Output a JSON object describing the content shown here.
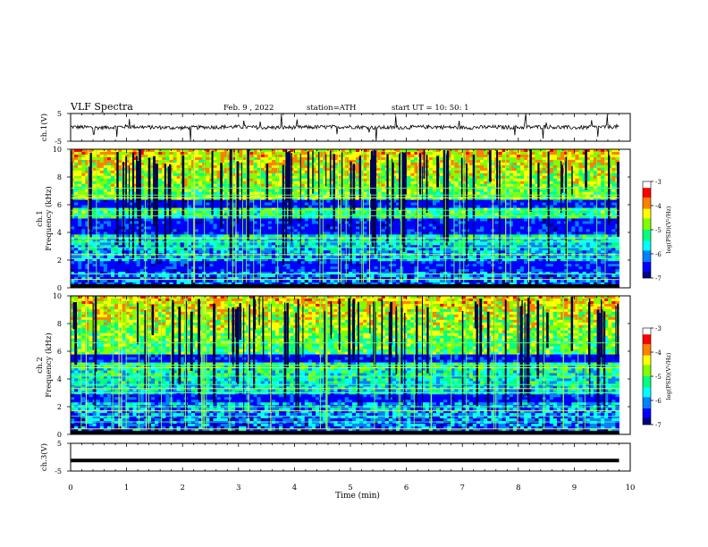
{
  "header": {
    "title": "VLF  Spectra",
    "date": "Feb. 9  , 2022",
    "station": "station=ATH",
    "start": "start  UT  =    10: 50: 1"
  },
  "chart_data": [
    {
      "type": "line",
      "panel": "ch1-waveform",
      "ylabel": "ch.1(V)",
      "ylim": [
        -5,
        5
      ],
      "yticks": [
        "5",
        "-5"
      ],
      "x": [
        0,
        0.5,
        1.0,
        1.5,
        2.0,
        2.5,
        3.0,
        3.5,
        4.0,
        4.5,
        5.0,
        5.5,
        6.0,
        6.5,
        7.0,
        7.5,
        8.0,
        8.5,
        9.0,
        9.5,
        9.8
      ],
      "y": [
        0.2,
        -0.1,
        0.3,
        0.0,
        -0.2,
        0.1,
        0.2,
        -0.1,
        0.0,
        0.1,
        0.2,
        -0.1,
        0.0,
        0.2,
        -0.1,
        0.1,
        0.0,
        0.2,
        -0.1,
        0.1,
        0.3
      ],
      "color": "#000000"
    },
    {
      "type": "heatmap",
      "panel": "ch1-spectrogram",
      "ylabel": "ch.1\nFrequency  (kHz)",
      "ylim": [
        0,
        10
      ],
      "yticks": [
        "0",
        "2",
        "4",
        "6",
        "8",
        "10"
      ],
      "colorbar": {
        "label": "log(PSD)(V²/Hz)",
        "range": [
          -7,
          -3
        ],
        "ticks": [
          "-3",
          "-4",
          "-5",
          "-6",
          "-7"
        ]
      },
      "low_bands_khz": [
        [
          3.9,
          5.0
        ],
        [
          1.1,
          1.9
        ],
        [
          5.8,
          6.3
        ],
        [
          0.0,
          0.2
        ]
      ],
      "line_freqs_khz": [
        0.6,
        1.0,
        2.1,
        2.4,
        2.9,
        3.3,
        3.6,
        5.2,
        5.6,
        6.5,
        6.7,
        7.2
      ]
    },
    {
      "type": "heatmap",
      "panel": "ch2-spectrogram",
      "ylabel": "ch.2\nFrequency  (kHz)",
      "ylim": [
        0,
        10
      ],
      "yticks": [
        "0",
        "2",
        "4",
        "6",
        "8",
        "10"
      ],
      "colorbar": {
        "label": "log(PSD)(V²/Hz)",
        "range": [
          -7,
          -3
        ],
        "ticks": [
          "-3",
          "-4",
          "-5",
          "-6",
          "-7"
        ]
      },
      "low_bands_khz": [
        [
          5.2,
          5.8
        ],
        [
          2.3,
          2.8
        ],
        [
          0.0,
          0.2
        ]
      ],
      "line_freqs_khz": [
        0.4,
        0.9,
        1.3,
        1.7,
        2.0,
        3.0,
        3.3,
        3.6,
        4.2,
        4.8,
        5.0,
        6.6
      ]
    },
    {
      "type": "line",
      "panel": "ch3-waveform",
      "ylabel": "ch.3(V)",
      "ylim": [
        -5,
        5
      ],
      "yticks": [
        "5",
        "-5"
      ],
      "x": [
        0,
        9.8
      ],
      "y": [
        -1.2,
        -1.2
      ],
      "color": "#000000"
    }
  ],
  "xaxis": {
    "label": "Time  (min)",
    "range": [
      0,
      10
    ],
    "ticks": [
      "0",
      "1",
      "2",
      "3",
      "4",
      "5",
      "6",
      "7",
      "8",
      "9",
      "10"
    ]
  },
  "colors": {
    "colormap": [
      "#000080",
      "#0000ff",
      "#0080ff",
      "#00ffff",
      "#00ff80",
      "#80ff00",
      "#ffff00",
      "#ff8000",
      "#ff0000",
      "#ffffff"
    ]
  }
}
